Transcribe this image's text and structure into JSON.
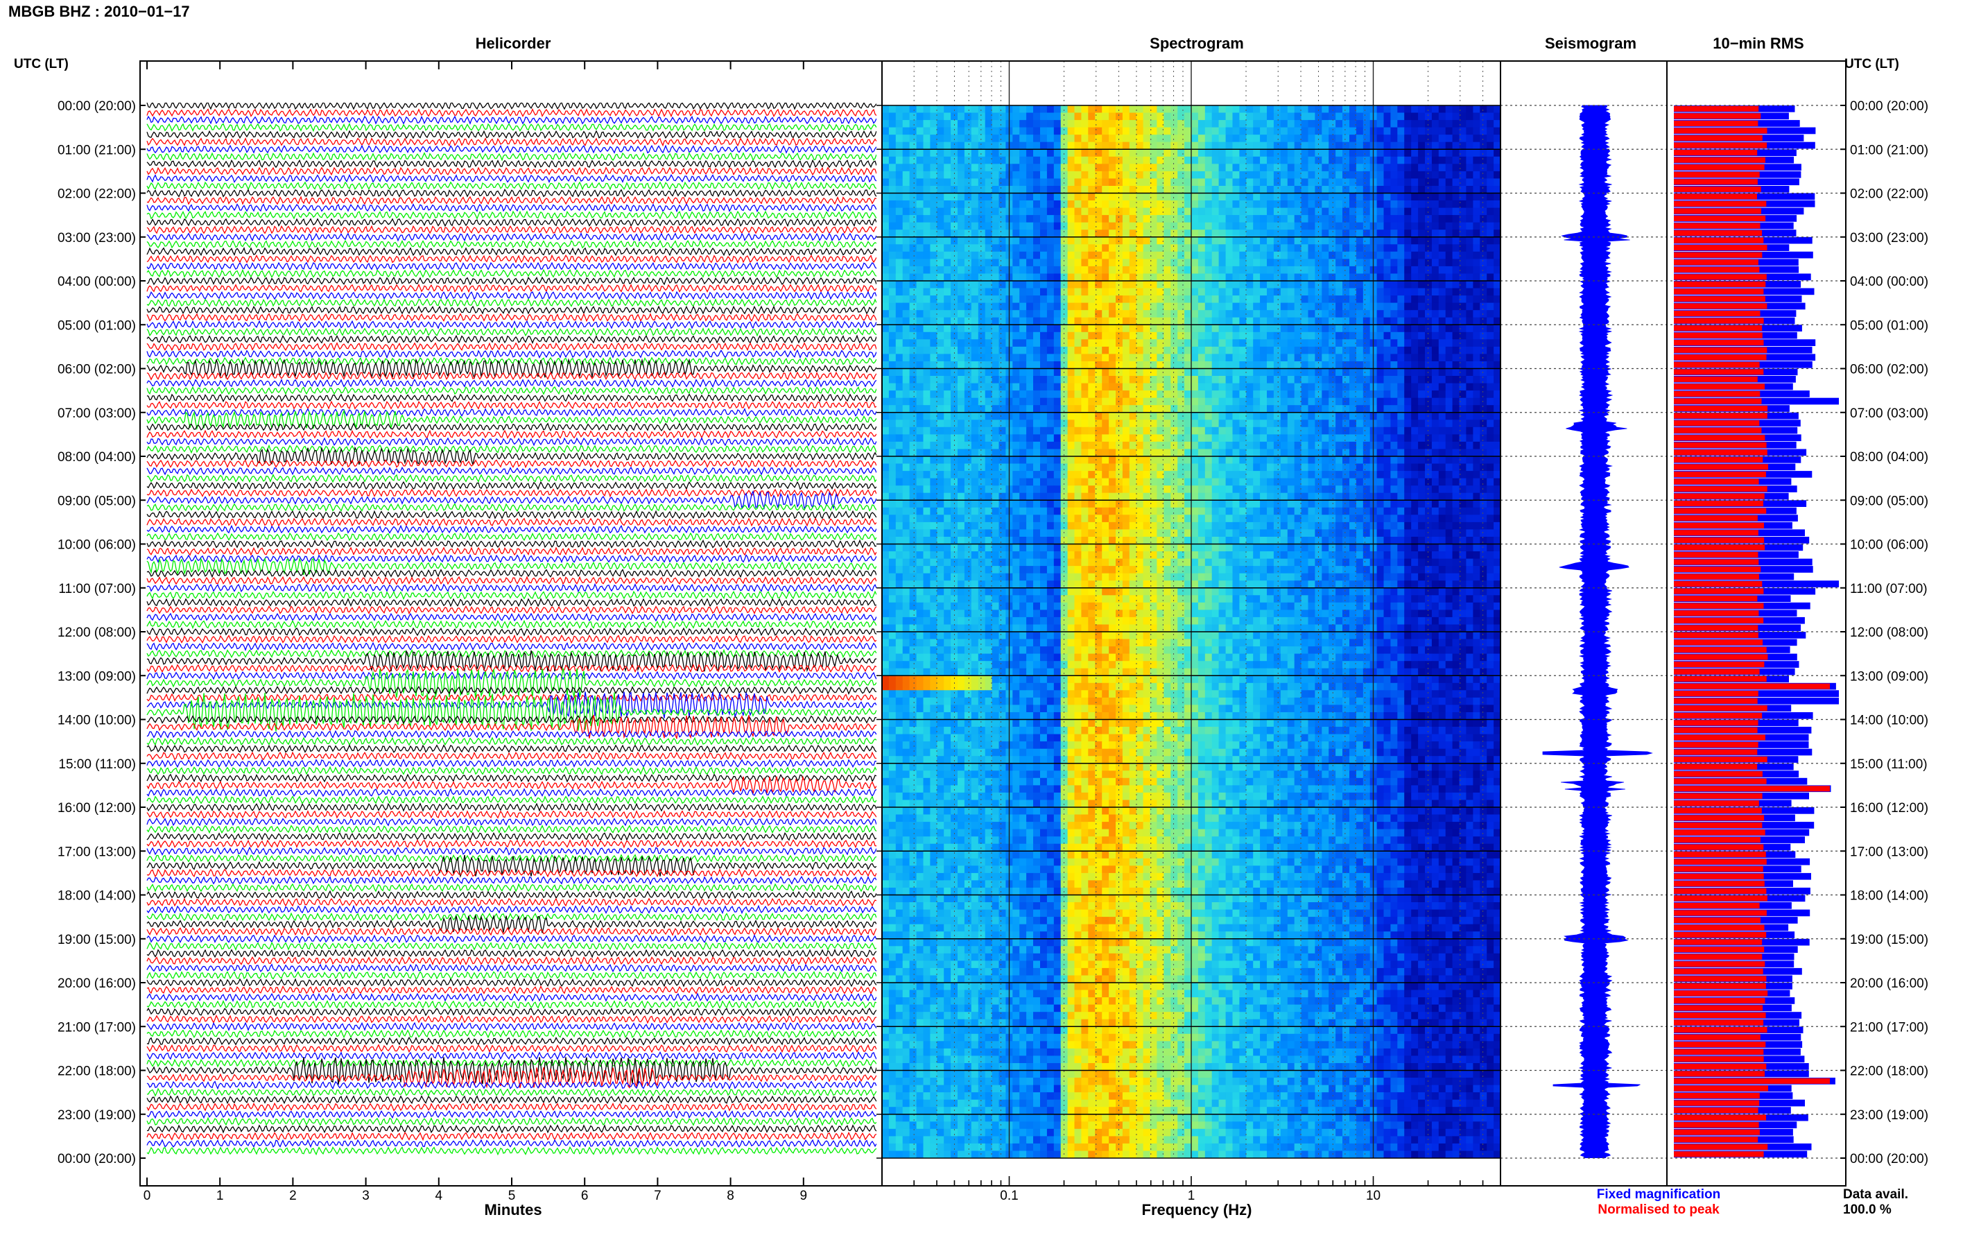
{
  "header": {
    "station_title": "MBGB BHZ : 2010−01−17",
    "left_axis_header": "UTC (LT)",
    "right_axis_header": "UTC (LT)"
  },
  "panels": {
    "helicorder_title": "Helicorder",
    "spectrogram_title": "Spectrogram",
    "seismogram_title": "Seismogram",
    "rms_title": "10−min RMS"
  },
  "legend": {
    "fixed": "Fixed magnification",
    "normalised": "Normalised to peak",
    "data_avail_label": "Data avail.",
    "data_avail_value": "100.0 %"
  },
  "colors": {
    "trace_cycle": [
      "#000000",
      "#ff0000",
      "#0000ff",
      "#00ee00"
    ],
    "rms_fixed": "#0000ff",
    "rms_normalised": "#ff0000"
  },
  "chart_data": [
    {
      "type": "line",
      "panel": "helicorder",
      "title": "Helicorder",
      "xlabel": "Minutes",
      "x_ticks": [
        "0",
        "1",
        "2",
        "3",
        "4",
        "5",
        "6",
        "7",
        "8",
        "9"
      ],
      "xlim": [
        0,
        10
      ],
      "lines_per_hour": 6,
      "y_ticks": [
        "00:00 (20:00)",
        "01:00 (21:00)",
        "02:00 (22:00)",
        "03:00 (23:00)",
        "04:00 (00:00)",
        "05:00 (01:00)",
        "06:00 (02:00)",
        "07:00 (03:00)",
        "08:00 (04:00)",
        "09:00 (05:00)",
        "10:00 (06:00)",
        "11:00 (07:00)",
        "12:00 (08:00)",
        "13:00 (09:00)",
        "14:00 (10:00)",
        "15:00 (11:00)",
        "16:00 (12:00)",
        "17:00 (13:00)",
        "18:00 (14:00)",
        "19:00 (15:00)",
        "20:00 (16:00)",
        "21:00 (17:00)",
        "22:00 (18:00)",
        "23:00 (19:00)",
        "00:00 (20:00)"
      ]
    },
    {
      "type": "heatmap",
      "panel": "spectrogram",
      "title": "Spectrogram",
      "xlabel": "Frequency (Hz)",
      "x_scale": "log",
      "xlim": [
        0.02,
        50
      ],
      "x_tick_labels": [
        {
          "value": 0.1,
          "label": "0.1"
        },
        {
          "value": 1,
          "label": "1"
        },
        {
          "value": 10,
          "label": "10"
        }
      ]
    },
    {
      "type": "line",
      "panel": "seismogram",
      "title": "Seismogram"
    },
    {
      "type": "bar",
      "panel": "rms",
      "title": "10−min RMS",
      "series": [
        {
          "name": "Fixed magnification"
        },
        {
          "name": "Normalised to peak"
        }
      ],
      "orientation": "horizontal"
    }
  ]
}
